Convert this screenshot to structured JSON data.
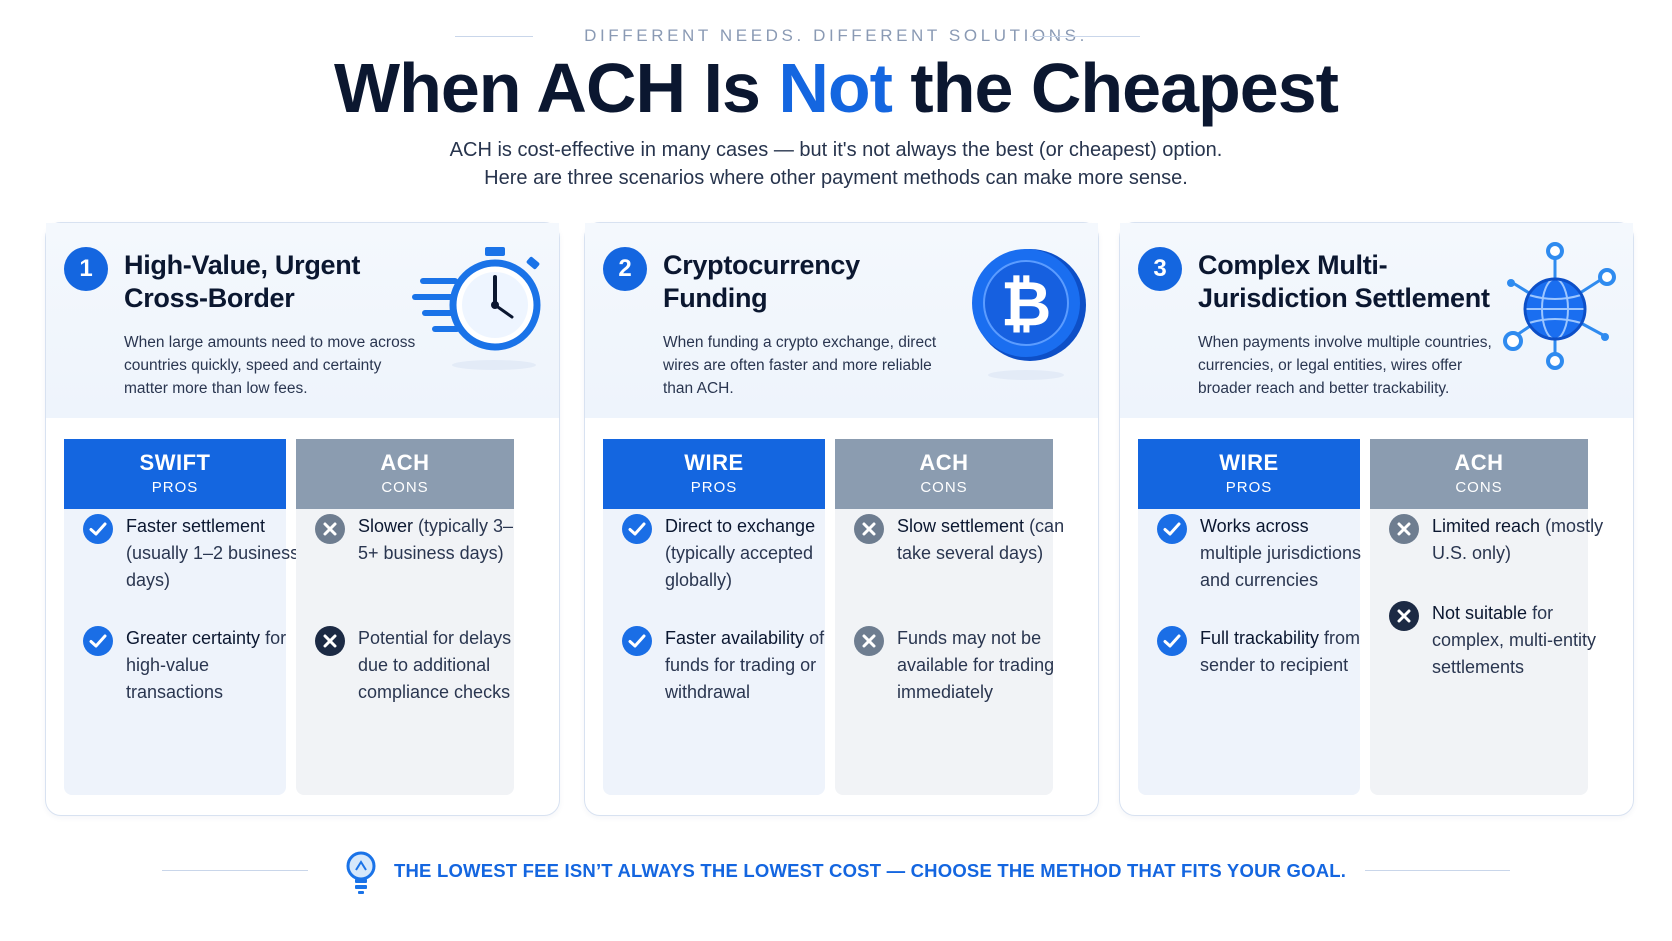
{
  "header": {
    "eyebrow": "DIFFERENT NEEDS. DIFFERENT SOLUTIONS.",
    "title_part1": "When ACH Is ",
    "title_accent": "Not",
    "title_part2": " the Cheapest",
    "subtitle_line1": "ACH is cost-effective in many cases — but it's not always the best (or cheapest) option.",
    "subtitle_line2": "Here are three scenarios where other payment methods can make more sense."
  },
  "colors": {
    "accent": "#1466e0",
    "pros_header": "#1466e0",
    "cons_header": "#8b9cb0",
    "title": "#0b1730"
  },
  "cards": [
    {
      "number": "1",
      "title": "High-Value, Urgent Cross-Border",
      "description": "When large amounts need to move across countries quickly, speed and certainty matter more than low fees.",
      "icon": "stopwatch-speed-icon",
      "pros": {
        "name": "SWIFT",
        "label": "PROS",
        "items": [
          {
            "icon": "check-icon",
            "lead": "Faster settlement",
            "rest": " (usually 1–2 business days)"
          },
          {
            "icon": "check-icon",
            "lead": "Greater certainty",
            "rest": " for high-value transactions"
          }
        ]
      },
      "cons": {
        "name": "ACH",
        "label": "CONS",
        "items": [
          {
            "icon": "x-icon",
            "lead": "Slower",
            "rest": " (typically 3–5+ business days)"
          },
          {
            "icon": "x-icon-dark",
            "lead": "",
            "rest": "Potential for delays due to additional compliance checks"
          }
        ]
      }
    },
    {
      "number": "2",
      "title": "Cryptocurrency Funding",
      "description": "When funding a crypto exchange, direct wires are often faster and more reliable than ACH.",
      "icon": "bitcoin-coin-icon",
      "bitcoin_glyph": "₿",
      "pros": {
        "name": "WIRE",
        "label": "PROS",
        "items": [
          {
            "icon": "check-icon",
            "lead": "Direct to exchange",
            "rest": " (typically accepted globally)"
          },
          {
            "icon": "check-icon",
            "lead": "Faster availability",
            "rest": " of funds for trading or withdrawal"
          }
        ]
      },
      "cons": {
        "name": "ACH",
        "label": "CONS",
        "items": [
          {
            "icon": "x-icon",
            "lead": "Slow settlement",
            "rest": " (can take several days)"
          },
          {
            "icon": "x-icon",
            "lead": "",
            "rest": "Funds may not be available for trading immediately"
          }
        ]
      }
    },
    {
      "number": "3",
      "title": "Complex Multi-Jurisdiction Settlement",
      "description": "When payments involve multiple countries, currencies, or legal entities, wires offer broader reach and better trackability.",
      "icon": "globe-network-icon",
      "pros": {
        "name": "WIRE",
        "label": "PROS",
        "items": [
          {
            "icon": "check-icon",
            "lead": "Works across",
            "rest": " multiple jurisdictions and currencies"
          },
          {
            "icon": "check-icon",
            "lead": "Full trackability",
            "rest": " from sender to recipient"
          }
        ]
      },
      "cons": {
        "name": "ACH",
        "label": "CONS",
        "items": [
          {
            "icon": "x-icon",
            "lead": "Limited reach",
            "rest": " (mostly U.S. only)"
          },
          {
            "icon": "x-icon-dark",
            "lead": "Not suitable",
            "rest": " for complex, multi-entity settlements"
          }
        ]
      }
    }
  ],
  "footer": {
    "icon": "lightbulb-icon",
    "text": "THE LOWEST FEE ISN’T ALWAYS THE LOWEST COST — CHOOSE THE METHOD THAT FITS YOUR GOAL."
  }
}
